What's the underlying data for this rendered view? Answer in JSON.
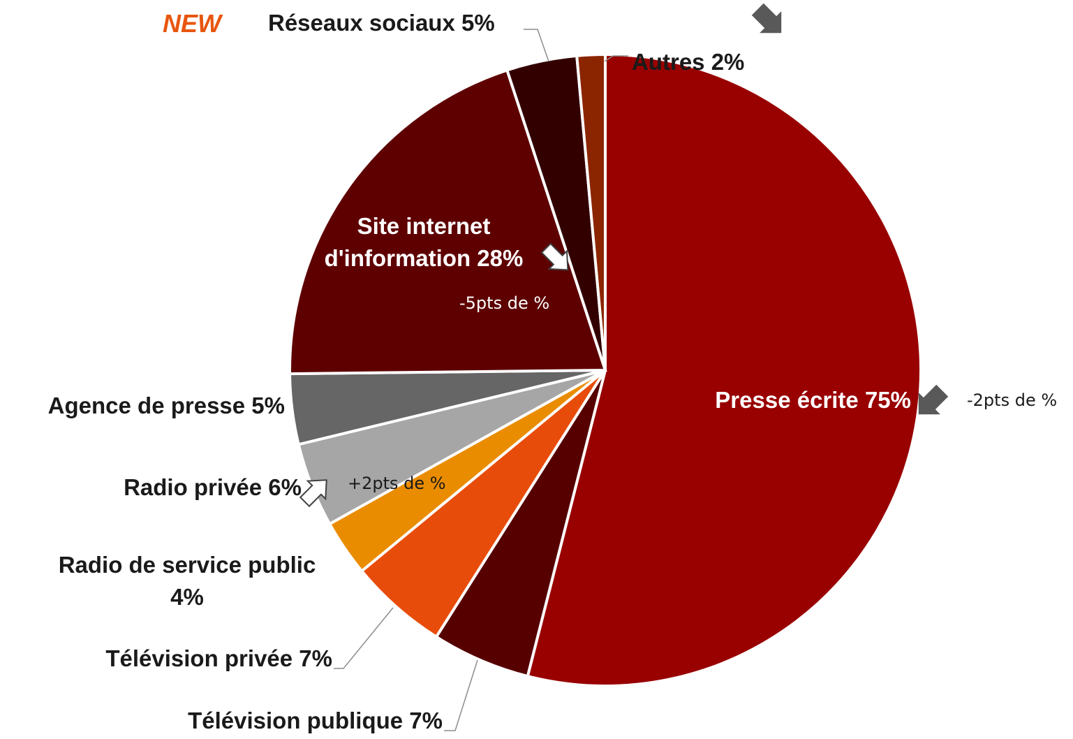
{
  "chart_data": {
    "type": "pie",
    "title": "",
    "slices": [
      {
        "label": "Presse écrite 75%",
        "value": 75,
        "color": "#990000"
      },
      {
        "label": "Télévision publique 7%",
        "value": 7,
        "color": "#560000"
      },
      {
        "label": "Télévision privée 7%",
        "value": 7,
        "color": "#e84c0a"
      },
      {
        "label": "Radio de service public 4%",
        "value": 4,
        "color": "#ea8c00"
      },
      {
        "label": "Radio privée 6%",
        "value": 6,
        "color": "#a6a6a6"
      },
      {
        "label": "Agence de presse 5%",
        "value": 5,
        "color": "#666666"
      },
      {
        "label": "Site internet d'information 28%",
        "value": 28,
        "color": "#5e0000"
      },
      {
        "label": "Réseaux sociaux 5%",
        "value": 5,
        "color": "#330000"
      },
      {
        "label": "Autres 2%",
        "value": 2,
        "color": "#8b2500"
      }
    ],
    "labels": {
      "presse": "Presse écrite 75%",
      "tv_publique": "Télévision publique 7%",
      "tv_privee": "Télévision privée 7%",
      "radio_service_public_line1": "Radio de service public",
      "radio_service_public_line2": "4%",
      "radio_privee": "Radio privée 6%",
      "agence": "Agence de presse 5%",
      "site_line1": "Site internet",
      "site_line2": "d'information 28%",
      "reseaux": "Réseaux sociaux 5%",
      "autres": "Autres 2%"
    },
    "annotations": {
      "new_tag": "NEW",
      "presse_change": "-2pts de %",
      "site_change": "-5pts de %",
      "radio_privee_change": "+2pts de %"
    },
    "trend_arrows": [
      {
        "target": "Presse écrite",
        "direction": "down",
        "color": "#595959"
      },
      {
        "target": "Site internet d'information",
        "direction": "down",
        "color": "#ffffff"
      },
      {
        "target": "Radio privée",
        "direction": "up",
        "color": "#ffffff"
      },
      {
        "target": "Autres",
        "direction": "down",
        "color": "#595959"
      }
    ]
  }
}
